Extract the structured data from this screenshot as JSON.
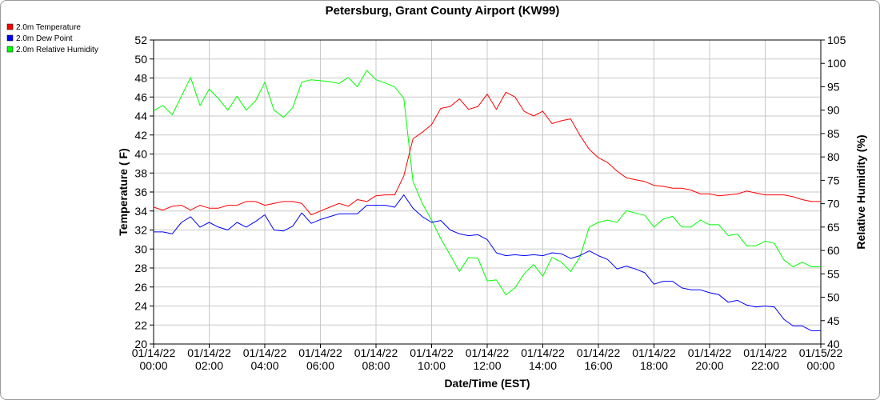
{
  "colors": {
    "temperature": "#ff0000",
    "dew_point": "#0000ff",
    "relative_humidity": "#00ff00",
    "grid": "#c8c8c8"
  },
  "chart_data": {
    "type": "line",
    "title": "Petersburg, Grant County Airport (KW99)",
    "xlabel": "Date/Time (EST)",
    "ylabel": "Temperature ( F)",
    "y2label": "Relative Humidity (%)",
    "xlim": [
      0,
      24
    ],
    "ylim": [
      20,
      52
    ],
    "y2lim": [
      40,
      105
    ],
    "grid": true,
    "legend_position": "top-left",
    "x_ticks": [
      {
        "line1": "01/14/22",
        "line2": "00:00"
      },
      {
        "line1": "01/14/22",
        "line2": "02:00"
      },
      {
        "line1": "01/14/22",
        "line2": "04:00"
      },
      {
        "line1": "01/14/22",
        "line2": "06:00"
      },
      {
        "line1": "01/14/22",
        "line2": "08:00"
      },
      {
        "line1": "01/14/22",
        "line2": "10:00"
      },
      {
        "line1": "01/14/22",
        "line2": "12:00"
      },
      {
        "line1": "01/14/22",
        "line2": "14:00"
      },
      {
        "line1": "01/14/22",
        "line2": "16:00"
      },
      {
        "line1": "01/14/22",
        "line2": "18:00"
      },
      {
        "line1": "01/14/22",
        "line2": "20:00"
      },
      {
        "line1": "01/14/22",
        "line2": "22:00"
      },
      {
        "line1": "01/15/22",
        "line2": "00:00"
      }
    ],
    "y_ticks": [
      "52",
      "50",
      "48",
      "46",
      "44",
      "42",
      "40",
      "38",
      "36",
      "34",
      "32",
      "30",
      "28",
      "26",
      "24",
      "22",
      "20"
    ],
    "y2_ticks": [
      "105",
      "100",
      "95",
      "90",
      "85",
      "80",
      "75",
      "70",
      "65",
      "60",
      "55",
      "50",
      "45",
      "40"
    ],
    "series": [
      {
        "name": "2.0m Temperature",
        "axis": "left",
        "color_key": "temperature",
        "x": [
          0,
          0.33,
          0.67,
          1.0,
          1.33,
          1.67,
          2.0,
          2.33,
          2.67,
          3.0,
          3.33,
          3.67,
          4.0,
          4.33,
          4.67,
          5.0,
          5.33,
          5.67,
          6.0,
          6.33,
          6.67,
          7.0,
          7.33,
          7.67,
          8.0,
          8.33,
          8.67,
          9.0,
          9.33,
          9.67,
          10.0,
          10.33,
          10.67,
          11.0,
          11.33,
          11.67,
          12.0,
          12.33,
          12.67,
          13.0,
          13.33,
          13.67,
          14.0,
          14.33,
          14.67,
          15.0,
          15.33,
          15.67,
          16.0,
          16.33,
          16.67,
          17.0,
          17.33,
          17.67,
          18.0,
          18.33,
          18.67,
          19.0,
          19.33,
          19.67,
          20.0,
          20.33,
          20.67,
          21.0,
          21.33,
          21.67,
          22.0,
          22.33,
          22.67,
          23.0,
          23.33,
          23.67,
          24.0
        ],
        "y": [
          34.4,
          34.1,
          34.5,
          34.6,
          34.1,
          34.6,
          34.3,
          34.3,
          34.6,
          34.6,
          35.0,
          35.0,
          34.6,
          34.8,
          35.0,
          35.0,
          34.8,
          33.6,
          34.0,
          34.4,
          34.8,
          34.5,
          35.2,
          35.0,
          35.6,
          35.7,
          35.7,
          37.7,
          41.6,
          42.3,
          43.1,
          44.8,
          45.0,
          45.8,
          44.7,
          45.0,
          46.3,
          44.7,
          46.5,
          46.0,
          44.5,
          44.0,
          44.5,
          43.2,
          43.5,
          43.7,
          42.0,
          40.5,
          39.6,
          39.1,
          38.2,
          37.5,
          37.3,
          37.1,
          36.7,
          36.6,
          36.4,
          36.4,
          36.2,
          35.8,
          35.8,
          35.6,
          35.7,
          35.8,
          36.1,
          35.9,
          35.7,
          35.7,
          35.7,
          35.5,
          35.2,
          35.0,
          35.0
        ]
      },
      {
        "name": "2.0m Dew Point",
        "axis": "left",
        "color_key": "dew_point",
        "x": [
          0,
          0.33,
          0.67,
          1.0,
          1.33,
          1.67,
          2.0,
          2.33,
          2.67,
          3.0,
          3.33,
          3.67,
          4.0,
          4.33,
          4.67,
          5.0,
          5.33,
          5.67,
          6.0,
          6.33,
          6.67,
          7.0,
          7.33,
          7.67,
          8.0,
          8.33,
          8.67,
          9.0,
          9.33,
          9.67,
          10.0,
          10.33,
          10.67,
          11.0,
          11.33,
          11.67,
          12.0,
          12.33,
          12.67,
          13.0,
          13.33,
          13.67,
          14.0,
          14.33,
          14.67,
          15.0,
          15.33,
          15.67,
          16.0,
          16.33,
          16.67,
          17.0,
          17.33,
          17.67,
          18.0,
          18.33,
          18.67,
          19.0,
          19.33,
          19.67,
          20.0,
          20.33,
          20.67,
          21.0,
          21.33,
          21.67,
          22.0,
          22.33,
          22.67,
          23.0,
          23.33,
          23.67,
          24.0
        ],
        "y": [
          31.8,
          31.8,
          31.6,
          32.8,
          33.4,
          32.3,
          32.8,
          32.3,
          32.0,
          32.8,
          32.3,
          32.9,
          33.6,
          32.0,
          31.9,
          32.4,
          33.8,
          32.7,
          33.1,
          33.4,
          33.7,
          33.7,
          33.7,
          34.6,
          34.6,
          34.6,
          34.4,
          35.7,
          34.3,
          33.4,
          32.8,
          33.0,
          32.0,
          31.6,
          31.4,
          31.5,
          31.0,
          29.6,
          29.3,
          29.4,
          29.3,
          29.4,
          29.3,
          29.6,
          29.5,
          29.0,
          29.3,
          29.8,
          29.3,
          28.9,
          27.9,
          28.2,
          27.9,
          27.5,
          26.3,
          26.6,
          26.6,
          25.9,
          25.7,
          25.7,
          25.4,
          25.2,
          24.4,
          24.6,
          24.1,
          23.9,
          24.0,
          23.9,
          22.6,
          21.9,
          21.9,
          21.4,
          21.4
        ]
      },
      {
        "name": "2.0m Relative Humidity",
        "axis": "right",
        "color_key": "relative_humidity",
        "x": [
          0,
          0.33,
          0.67,
          1.0,
          1.33,
          1.67,
          2.0,
          2.33,
          2.67,
          3.0,
          3.33,
          3.67,
          4.0,
          4.33,
          4.67,
          5.0,
          5.33,
          5.67,
          6.0,
          6.33,
          6.67,
          7.0,
          7.33,
          7.67,
          8.0,
          8.33,
          8.67,
          9.0,
          9.33,
          9.67,
          10.0,
          10.33,
          10.67,
          11.0,
          11.33,
          11.67,
          12.0,
          12.33,
          12.67,
          13.0,
          13.33,
          13.67,
          14.0,
          14.33,
          14.67,
          15.0,
          15.33,
          15.67,
          16.0,
          16.33,
          16.67,
          17.0,
          17.33,
          17.67,
          18.0,
          18.33,
          18.67,
          19.0,
          19.33,
          19.67,
          20.0,
          20.33,
          20.67,
          21.0,
          21.33,
          21.67,
          22.0,
          22.33,
          22.67,
          23.0,
          23.33,
          23.67,
          24.0
        ],
        "y": [
          89.9,
          91.0,
          89.0,
          93.0,
          97.0,
          91.0,
          94.5,
          92.5,
          90.0,
          93.0,
          90.0,
          92.0,
          96.0,
          90.0,
          88.5,
          90.5,
          96.0,
          96.5,
          96.3,
          96.1,
          95.7,
          97.0,
          95.0,
          98.5,
          96.5,
          95.8,
          95.0,
          92.5,
          74.8,
          70.0,
          66.5,
          62.5,
          59.0,
          55.5,
          58.5,
          58.3,
          53.5,
          53.7,
          50.5,
          52.0,
          55.0,
          57.0,
          54.5,
          58.5,
          57.5,
          55.5,
          58.5,
          65.0,
          66.0,
          66.5,
          66.0,
          68.5,
          68.0,
          67.5,
          65.0,
          66.7,
          67.3,
          65.0,
          65.0,
          66.5,
          65.5,
          65.5,
          63.2,
          63.5,
          61.0,
          61.0,
          62.0,
          61.5,
          58.0,
          56.5,
          57.5,
          56.5,
          56.5
        ]
      }
    ]
  }
}
